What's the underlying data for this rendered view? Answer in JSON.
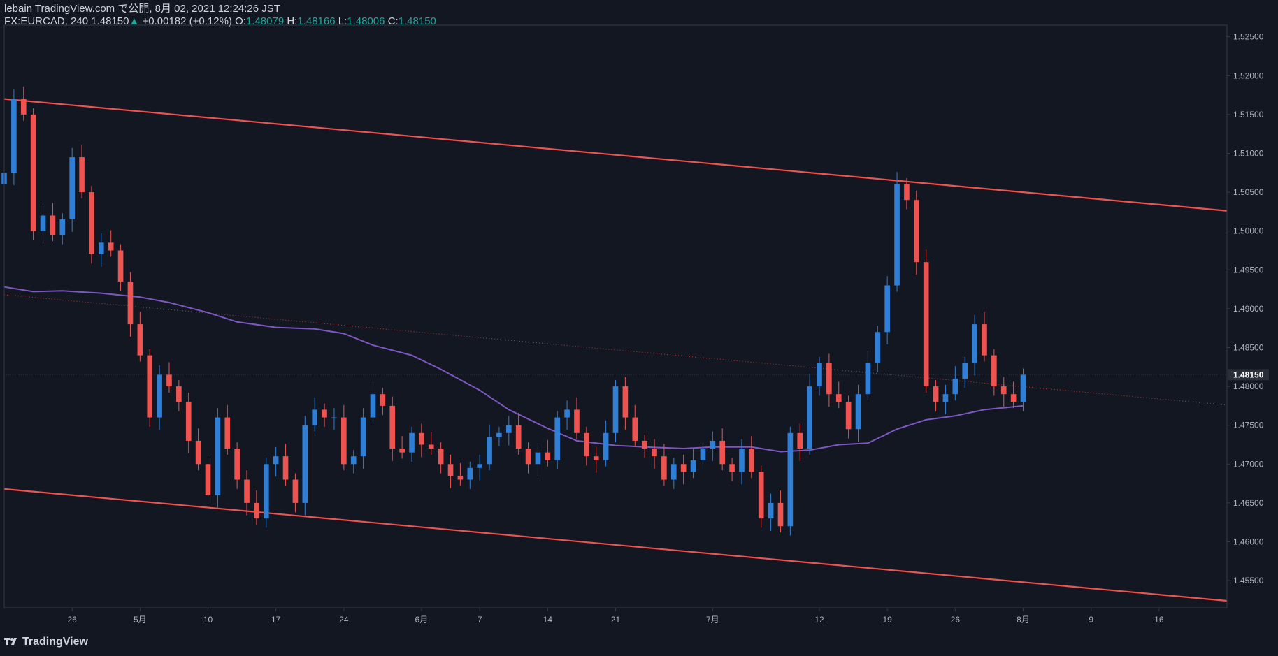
{
  "header": {
    "line1": "lebain TradingView.com で公開, 8月 02, 2021 12:24:26 JST",
    "symbol": "FX:EURCAD, 240",
    "last": "1.48150",
    "change_arrow": "▲",
    "change": "+0.00182 (+0.12%)",
    "o_label": "O:",
    "o": "1.48079",
    "h_label": "H:",
    "h": "1.48166",
    "l_label": "L:",
    "l": "1.48006",
    "c_label": "C:",
    "c": "1.48150"
  },
  "footer": {
    "logo_icon": "tradingview-logo-icon",
    "brand": "TradingView"
  },
  "colors": {
    "background": "#131722",
    "up": "#2f7fd6",
    "down": "#ef5350",
    "channel": "#f0524f",
    "ma": "#7e57c2",
    "axis_text": "#b2b5be",
    "grid_border": "#363a45"
  },
  "chart_data": {
    "type": "candlestick",
    "title": "",
    "ylim": [
      1.4515,
      1.5265
    ],
    "y_ticks": [
      "1.45500",
      "1.46000",
      "1.46500",
      "1.47000",
      "1.47500",
      "1.48000",
      "1.48500",
      "1.49000",
      "1.49500",
      "1.50000",
      "1.50500",
      "1.51000",
      "1.51500",
      "1.52000",
      "1.52500"
    ],
    "x_ticks": [
      {
        "label": "26",
        "date": "2021-04-26"
      },
      {
        "label": "5月",
        "date": "2021-05-03"
      },
      {
        "label": "10",
        "date": "2021-05-10"
      },
      {
        "label": "17",
        "date": "2021-05-17"
      },
      {
        "label": "24",
        "date": "2021-05-24"
      },
      {
        "label": "6月",
        "date": "2021-06-01"
      },
      {
        "label": "7",
        "date": "2021-06-07"
      },
      {
        "label": "14",
        "date": "2021-06-14"
      },
      {
        "label": "21",
        "date": "2021-06-21"
      },
      {
        "label": "7月",
        "date": "2021-07-01"
      },
      {
        "label": "12",
        "date": "2021-07-12"
      },
      {
        "label": "19",
        "date": "2021-07-19"
      },
      {
        "label": "26",
        "date": "2021-07-26"
      },
      {
        "label": "8月",
        "date": "2021-08-02"
      },
      {
        "label": "9",
        "date": "2021-08-09"
      },
      {
        "label": "16",
        "date": "2021-08-16"
      }
    ],
    "last_price_label": "1.48150",
    "last_price": 1.4815,
    "channel_upper": [
      {
        "date": "2021-04-19",
        "y": 1.517
      },
      {
        "date": "2021-08-23",
        "y": 1.5026
      }
    ],
    "channel_lower": [
      {
        "date": "2021-04-19",
        "y": 1.4668
      },
      {
        "date": "2021-08-23",
        "y": 1.4524
      }
    ],
    "trend_dotted": [
      {
        "date": "2021-04-19",
        "y": 1.4918
      },
      {
        "date": "2021-08-23",
        "y": 1.4776
      }
    ],
    "ma_line": [
      {
        "date": "2021-04-19",
        "y": 1.4928
      },
      {
        "date": "2021-04-22",
        "y": 1.4922
      },
      {
        "date": "2021-04-25",
        "y": 1.4923
      },
      {
        "date": "2021-04-29",
        "y": 1.492
      },
      {
        "date": "2021-05-03",
        "y": 1.4915
      },
      {
        "date": "2021-05-06",
        "y": 1.4908
      },
      {
        "date": "2021-05-10",
        "y": 1.4895
      },
      {
        "date": "2021-05-13",
        "y": 1.4883
      },
      {
        "date": "2021-05-17",
        "y": 1.4876
      },
      {
        "date": "2021-05-21",
        "y": 1.4874
      },
      {
        "date": "2021-05-24",
        "y": 1.4868
      },
      {
        "date": "2021-05-27",
        "y": 1.4853
      },
      {
        "date": "2021-05-31",
        "y": 1.484
      },
      {
        "date": "2021-06-03",
        "y": 1.4822
      },
      {
        "date": "2021-06-07",
        "y": 1.4795
      },
      {
        "date": "2021-06-10",
        "y": 1.477
      },
      {
        "date": "2021-06-14",
        "y": 1.4746
      },
      {
        "date": "2021-06-17",
        "y": 1.473
      },
      {
        "date": "2021-06-21",
        "y": 1.4724
      },
      {
        "date": "2021-06-24",
        "y": 1.4722
      },
      {
        "date": "2021-06-28",
        "y": 1.472
      },
      {
        "date": "2021-07-01",
        "y": 1.4722
      },
      {
        "date": "2021-07-05",
        "y": 1.4722
      },
      {
        "date": "2021-07-08",
        "y": 1.4716
      },
      {
        "date": "2021-07-11",
        "y": 1.4718
      },
      {
        "date": "2021-07-14",
        "y": 1.4725
      },
      {
        "date": "2021-07-17",
        "y": 1.4727
      },
      {
        "date": "2021-07-20",
        "y": 1.4745
      },
      {
        "date": "2021-07-23",
        "y": 1.4757
      },
      {
        "date": "2021-07-26",
        "y": 1.4762
      },
      {
        "date": "2021-07-29",
        "y": 1.477
      },
      {
        "date": "2021-08-02",
        "y": 1.4775
      }
    ],
    "candles_close": [
      {
        "date": "2021-04-19",
        "c": 1.5075
      },
      {
        "date": "2021-04-20",
        "c": 1.517
      },
      {
        "date": "2021-04-21",
        "c": 1.515
      },
      {
        "date": "2021-04-22",
        "c": 1.5
      },
      {
        "date": "2021-04-23",
        "c": 1.502
      },
      {
        "date": "2021-04-24",
        "c": 1.4995
      },
      {
        "date": "2021-04-25",
        "c": 1.5015
      },
      {
        "date": "2021-04-26",
        "c": 1.5095
      },
      {
        "date": "2021-04-27",
        "c": 1.505
      },
      {
        "date": "2021-04-28",
        "c": 1.497
      },
      {
        "date": "2021-04-29",
        "c": 1.4985
      },
      {
        "date": "2021-04-30",
        "c": 1.4975
      },
      {
        "date": "2021-05-01",
        "c": 1.4935
      },
      {
        "date": "2021-05-02",
        "c": 1.488
      },
      {
        "date": "2021-05-03",
        "c": 1.484
      },
      {
        "date": "2021-05-04",
        "c": 1.476
      },
      {
        "date": "2021-05-05",
        "c": 1.4815
      },
      {
        "date": "2021-05-06",
        "c": 1.48
      },
      {
        "date": "2021-05-07",
        "c": 1.478
      },
      {
        "date": "2021-05-08",
        "c": 1.473
      },
      {
        "date": "2021-05-09",
        "c": 1.47
      },
      {
        "date": "2021-05-10",
        "c": 1.466
      },
      {
        "date": "2021-05-11",
        "c": 1.476
      },
      {
        "date": "2021-05-12",
        "c": 1.472
      },
      {
        "date": "2021-05-13",
        "c": 1.468
      },
      {
        "date": "2021-05-14",
        "c": 1.465
      },
      {
        "date": "2021-05-15",
        "c": 1.463
      },
      {
        "date": "2021-05-16",
        "c": 1.47
      },
      {
        "date": "2021-05-17",
        "c": 1.471
      },
      {
        "date": "2021-05-18",
        "c": 1.468
      },
      {
        "date": "2021-05-19",
        "c": 1.465
      },
      {
        "date": "2021-05-20",
        "c": 1.475
      },
      {
        "date": "2021-05-21",
        "c": 1.477
      },
      {
        "date": "2021-05-22",
        "c": 1.476
      },
      {
        "date": "2021-05-23",
        "c": 1.476
      },
      {
        "date": "2021-05-24",
        "c": 1.47
      },
      {
        "date": "2021-05-25",
        "c": 1.471
      },
      {
        "date": "2021-05-26",
        "c": 1.476
      },
      {
        "date": "2021-05-27",
        "c": 1.479
      },
      {
        "date": "2021-05-28",
        "c": 1.4775
      },
      {
        "date": "2021-05-29",
        "c": 1.472
      },
      {
        "date": "2021-05-30",
        "c": 1.4715
      },
      {
        "date": "2021-05-31",
        "c": 1.474
      },
      {
        "date": "2021-06-01",
        "c": 1.4725
      },
      {
        "date": "2021-06-02",
        "c": 1.472
      },
      {
        "date": "2021-06-03",
        "c": 1.47
      },
      {
        "date": "2021-06-04",
        "c": 1.4685
      },
      {
        "date": "2021-06-05",
        "c": 1.468
      },
      {
        "date": "2021-06-06",
        "c": 1.4695
      },
      {
        "date": "2021-06-07",
        "c": 1.47
      },
      {
        "date": "2021-06-08",
        "c": 1.4735
      },
      {
        "date": "2021-06-09",
        "c": 1.474
      },
      {
        "date": "2021-06-10",
        "c": 1.475
      },
      {
        "date": "2021-06-11",
        "c": 1.472
      },
      {
        "date": "2021-06-12",
        "c": 1.47
      },
      {
        "date": "2021-06-13",
        "c": 1.4715
      },
      {
        "date": "2021-06-14",
        "c": 1.4705
      },
      {
        "date": "2021-06-15",
        "c": 1.476
      },
      {
        "date": "2021-06-16",
        "c": 1.477
      },
      {
        "date": "2021-06-17",
        "c": 1.474
      },
      {
        "date": "2021-06-18",
        "c": 1.471
      },
      {
        "date": "2021-06-19",
        "c": 1.4705
      },
      {
        "date": "2021-06-20",
        "c": 1.474
      },
      {
        "date": "2021-06-21",
        "c": 1.48
      },
      {
        "date": "2021-06-22",
        "c": 1.476
      },
      {
        "date": "2021-06-23",
        "c": 1.473
      },
      {
        "date": "2021-06-24",
        "c": 1.472
      },
      {
        "date": "2021-06-25",
        "c": 1.471
      },
      {
        "date": "2021-06-26",
        "c": 1.468
      },
      {
        "date": "2021-06-27",
        "c": 1.47
      },
      {
        "date": "2021-06-28",
        "c": 1.469
      },
      {
        "date": "2021-06-29",
        "c": 1.4705
      },
      {
        "date": "2021-06-30",
        "c": 1.472
      },
      {
        "date": "2021-07-01",
        "c": 1.473
      },
      {
        "date": "2021-07-02",
        "c": 1.47
      },
      {
        "date": "2021-07-03",
        "c": 1.469
      },
      {
        "date": "2021-07-04",
        "c": 1.472
      },
      {
        "date": "2021-07-05",
        "c": 1.469
      },
      {
        "date": "2021-07-06",
        "c": 1.463
      },
      {
        "date": "2021-07-07",
        "c": 1.465
      },
      {
        "date": "2021-07-08",
        "c": 1.462
      },
      {
        "date": "2021-07-09",
        "c": 1.474
      },
      {
        "date": "2021-07-10",
        "c": 1.472
      },
      {
        "date": "2021-07-11",
        "c": 1.48
      },
      {
        "date": "2021-07-12",
        "c": 1.483
      },
      {
        "date": "2021-07-13",
        "c": 1.479
      },
      {
        "date": "2021-07-14",
        "c": 1.478
      },
      {
        "date": "2021-07-15",
        "c": 1.4745
      },
      {
        "date": "2021-07-16",
        "c": 1.479
      },
      {
        "date": "2021-07-17",
        "c": 1.483
      },
      {
        "date": "2021-07-18",
        "c": 1.487
      },
      {
        "date": "2021-07-19",
        "c": 1.493
      },
      {
        "date": "2021-07-20",
        "c": 1.506
      },
      {
        "date": "2021-07-21",
        "c": 1.504
      },
      {
        "date": "2021-07-22",
        "c": 1.496
      },
      {
        "date": "2021-07-23",
        "c": 1.48
      },
      {
        "date": "2021-07-24",
        "c": 1.478
      },
      {
        "date": "2021-07-25",
        "c": 1.479
      },
      {
        "date": "2021-07-26",
        "c": 1.481
      },
      {
        "date": "2021-07-27",
        "c": 1.483
      },
      {
        "date": "2021-07-28",
        "c": 1.488
      },
      {
        "date": "2021-07-29",
        "c": 1.484
      },
      {
        "date": "2021-07-30",
        "c": 1.48
      },
      {
        "date": "2021-07-31",
        "c": 1.479
      },
      {
        "date": "2021-08-01",
        "c": 1.478
      },
      {
        "date": "2021-08-02",
        "c": 1.4815
      }
    ]
  }
}
